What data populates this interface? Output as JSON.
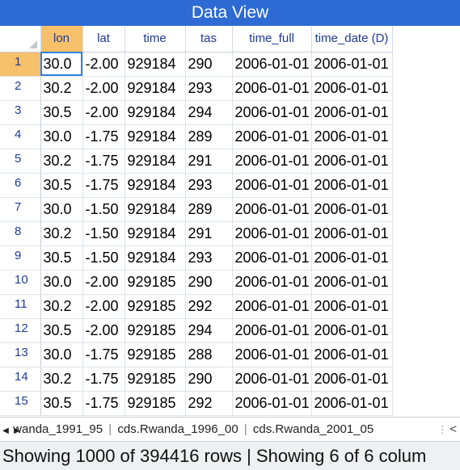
{
  "window": {
    "title": "Data View"
  },
  "table": {
    "columns": [
      "lon",
      "lat",
      "time",
      "tas",
      "time_full",
      "time_date (D)"
    ],
    "rows": [
      [
        "1",
        "30.0",
        "-2.00",
        "929184",
        "290",
        "2006-01-01",
        "2006-01-01"
      ],
      [
        "2",
        "30.2",
        "-2.00",
        "929184",
        "293",
        "2006-01-01",
        "2006-01-01"
      ],
      [
        "3",
        "30.5",
        "-2.00",
        "929184",
        "294",
        "2006-01-01",
        "2006-01-01"
      ],
      [
        "4",
        "30.0",
        "-1.75",
        "929184",
        "289",
        "2006-01-01",
        "2006-01-01"
      ],
      [
        "5",
        "30.2",
        "-1.75",
        "929184",
        "291",
        "2006-01-01",
        "2006-01-01"
      ],
      [
        "6",
        "30.5",
        "-1.75",
        "929184",
        "293",
        "2006-01-01",
        "2006-01-01"
      ],
      [
        "7",
        "30.0",
        "-1.50",
        "929184",
        "289",
        "2006-01-01",
        "2006-01-01"
      ],
      [
        "8",
        "30.2",
        "-1.50",
        "929184",
        "291",
        "2006-01-01",
        "2006-01-01"
      ],
      [
        "9",
        "30.5",
        "-1.50",
        "929184",
        "293",
        "2006-01-01",
        "2006-01-01"
      ],
      [
        "10",
        "30.0",
        "-2.00",
        "929185",
        "290",
        "2006-01-01",
        "2006-01-01"
      ],
      [
        "11",
        "30.2",
        "-2.00",
        "929185",
        "292",
        "2006-01-01",
        "2006-01-01"
      ],
      [
        "12",
        "30.5",
        "-2.00",
        "929185",
        "294",
        "2006-01-01",
        "2006-01-01"
      ],
      [
        "13",
        "30.0",
        "-1.75",
        "929185",
        "288",
        "2006-01-01",
        "2006-01-01"
      ],
      [
        "14",
        "30.2",
        "-1.75",
        "929185",
        "290",
        "2006-01-01",
        "2006-01-01"
      ],
      [
        "15",
        "30.5",
        "-1.75",
        "929185",
        "292",
        "2006-01-01",
        "2006-01-01"
      ]
    ]
  },
  "tabs": {
    "items": [
      "wanda_1991_95",
      "cds.Rwanda_1996_00",
      "cds.Rwanda_2001_05"
    ],
    "separator": "|",
    "prev_icon": "triangle-left-icon",
    "next_icon": "triangle-right-icon",
    "more_icon": "ellipsis-vertical-icon",
    "scroll_icon": "chevron-left-icon"
  },
  "status": {
    "text": "Showing 1000 of 394416 rows | Showing 6 of 6 colum"
  },
  "colors": {
    "title_bg": "#2d6ad3",
    "header_highlight": "#f7c06a",
    "selection": "#2f83e0"
  }
}
